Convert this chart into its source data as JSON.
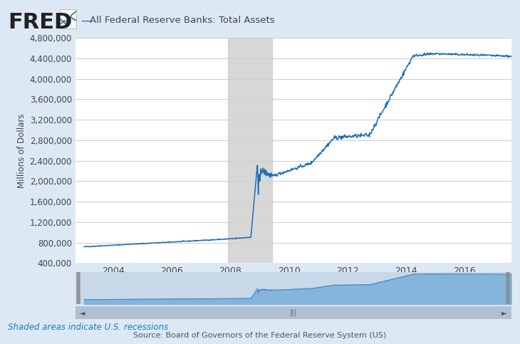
{
  "title": "All Federal Reserve Banks: Total Assets",
  "ylabel": "Millions of Dollars",
  "line_color": "#1f6eb5",
  "background_color": "#dce9f5",
  "plot_bg_color": "#ffffff",
  "recession_color": "#d0d0d0",
  "recession_alpha": 0.85,
  "recession_start": 2007.92,
  "recession_end": 2009.42,
  "xmin": 2002.7,
  "xmax": 2017.6,
  "ymin": 400000,
  "ymax": 4800000,
  "yticks": [
    400000,
    800000,
    1200000,
    1600000,
    2000000,
    2400000,
    2800000,
    3200000,
    3600000,
    4000000,
    4400000,
    4800000
  ],
  "xticks": [
    2004,
    2006,
    2008,
    2010,
    2012,
    2014,
    2016
  ],
  "annotation_text": "Shaded areas indicate U.S. recessions",
  "annotation_color": "#1a7abf",
  "source_text": "Source: Board of Governors of the Federal Reserve System (US)",
  "source_color": "#555555",
  "nav_bg": "#c8d8e8",
  "nav_fill_color": "#5a9fd4",
  "nav_fill_alpha": 0.6
}
